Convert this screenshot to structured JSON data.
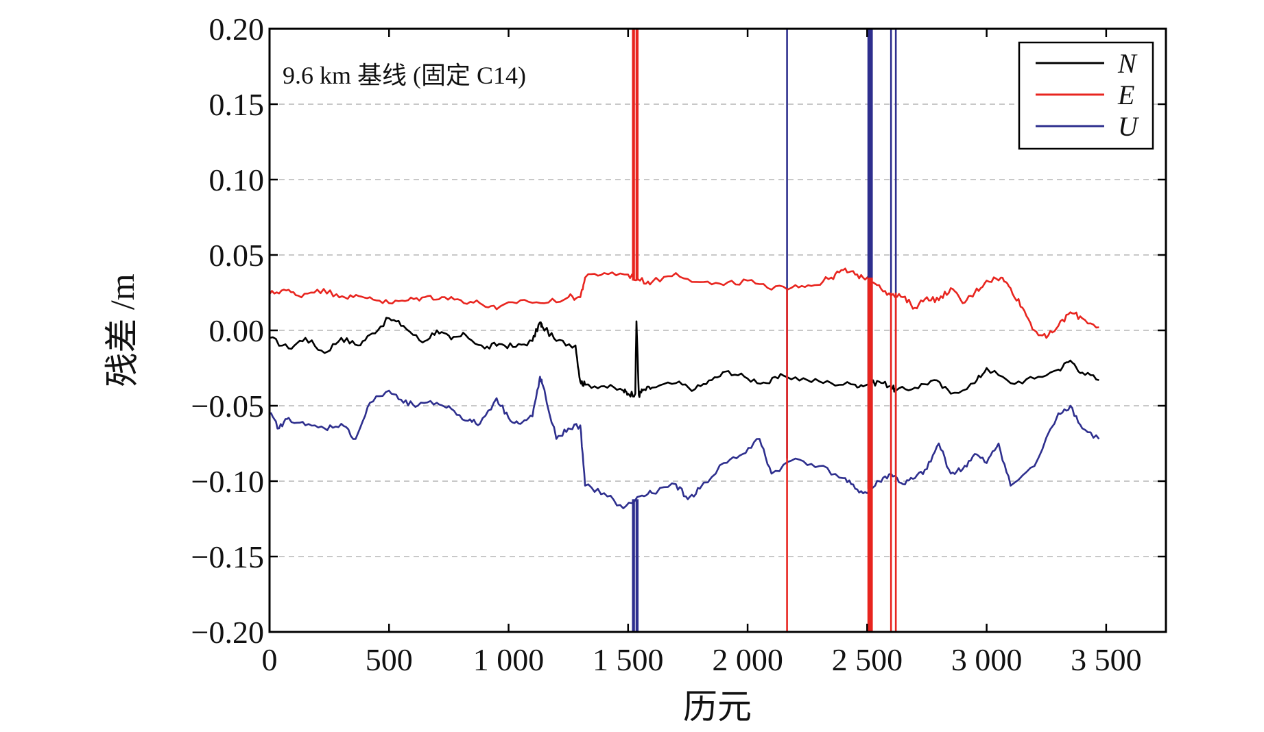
{
  "chart_data": {
    "type": "line",
    "annotation": "9.6 km 基线 (固定 C14)",
    "xlabel": "历元",
    "ylabel": "残差 /m",
    "xlim": [
      0,
      3750
    ],
    "ylim": [
      -0.2,
      0.2
    ],
    "x_ticks": [
      0,
      500,
      1000,
      1500,
      2000,
      2500,
      3000,
      3500
    ],
    "x_tick_labels": [
      "0",
      "500",
      "1 000",
      "1 500",
      "2 000",
      "2 500",
      "3 000",
      "3 500"
    ],
    "y_ticks": [
      0.2,
      0.15,
      0.1,
      0.05,
      0.0,
      -0.05,
      -0.1,
      -0.15,
      -0.2
    ],
    "y_tick_labels": [
      "0.20",
      "0.15",
      "0.10",
      "0.05",
      "0.00",
      "−0.05",
      "−0.10",
      "−0.15",
      "−0.20"
    ],
    "grid": "horizontal dashed",
    "legend_position": "top-right",
    "series": [
      {
        "name": "N",
        "color": "#000000",
        "x": [
          0,
          80,
          150,
          230,
          300,
          370,
          430,
          500,
          560,
          640,
          700,
          760,
          820,
          900,
          960,
          1030,
          1100,
          1130,
          1140,
          1200,
          1280,
          1300,
          1320,
          1400,
          1480,
          1500,
          1530,
          1535,
          1545,
          1560,
          1600,
          1700,
          1780,
          1850,
          1920,
          2000,
          2080,
          2150,
          2250,
          2350,
          2450,
          2500,
          2550,
          2600,
          2620,
          2700,
          2780,
          2850,
          2950,
          3000,
          3100,
          3200,
          3300,
          3350,
          3400,
          3470
        ],
        "y": [
          -0.005,
          -0.012,
          -0.005,
          -0.015,
          -0.005,
          -0.01,
          -0.002,
          0.008,
          0.003,
          -0.008,
          0.0,
          -0.006,
          -0.003,
          -0.012,
          -0.009,
          -0.011,
          -0.007,
          0.005,
          0.003,
          -0.007,
          -0.01,
          -0.034,
          -0.036,
          -0.037,
          -0.04,
          -0.042,
          -0.042,
          0.006,
          -0.043,
          -0.04,
          -0.038,
          -0.035,
          -0.039,
          -0.033,
          -0.027,
          -0.032,
          -0.035,
          -0.03,
          -0.033,
          -0.035,
          -0.036,
          -0.036,
          -0.034,
          -0.037,
          -0.04,
          -0.038,
          -0.033,
          -0.042,
          -0.035,
          -0.025,
          -0.035,
          -0.032,
          -0.026,
          -0.02,
          -0.028,
          -0.033
        ]
      },
      {
        "name": "E",
        "color": "#e8251f",
        "x": [
          0,
          60,
          120,
          200,
          280,
          350,
          420,
          500,
          580,
          650,
          720,
          800,
          880,
          950,
          1050,
          1150,
          1250,
          1300,
          1320,
          1400,
          1500,
          1550,
          1600,
          1700,
          1800,
          1900,
          2000,
          2100,
          2200,
          2280,
          2350,
          2400,
          2450,
          2500,
          2550,
          2600,
          2650,
          2700,
          2750,
          2800,
          2850,
          2900,
          2950,
          3000,
          3060,
          3100,
          3150,
          3200,
          3250,
          3300,
          3350,
          3400,
          3470
        ],
        "y": [
          0.024,
          0.027,
          0.023,
          0.027,
          0.024,
          0.022,
          0.022,
          0.018,
          0.02,
          0.022,
          0.022,
          0.02,
          0.018,
          0.014,
          0.02,
          0.018,
          0.022,
          0.022,
          0.035,
          0.038,
          0.037,
          0.033,
          0.032,
          0.038,
          0.032,
          0.03,
          0.033,
          0.027,
          0.03,
          0.03,
          0.035,
          0.04,
          0.037,
          0.035,
          0.03,
          0.023,
          0.022,
          0.015,
          0.022,
          0.02,
          0.028,
          0.018,
          0.025,
          0.033,
          0.035,
          0.028,
          0.015,
          0.0,
          -0.005,
          0.003,
          0.012,
          0.008,
          0.002
        ]
      },
      {
        "name": "U",
        "color": "#2e2f8e",
        "x": [
          0,
          40,
          80,
          150,
          230,
          300,
          360,
          420,
          500,
          560,
          620,
          700,
          760,
          830,
          880,
          950,
          1000,
          1050,
          1100,
          1130,
          1140,
          1200,
          1250,
          1300,
          1320,
          1400,
          1480,
          1550,
          1600,
          1700,
          1750,
          1800,
          1900,
          1980,
          2050,
          2100,
          2200,
          2300,
          2400,
          2450,
          2500,
          2550,
          2600,
          2650,
          2700,
          2750,
          2800,
          2850,
          2900,
          2950,
          3000,
          3050,
          3100,
          3200,
          3300,
          3350,
          3400,
          3470
        ],
        "y": [
          -0.055,
          -0.065,
          -0.058,
          -0.063,
          -0.065,
          -0.062,
          -0.072,
          -0.048,
          -0.04,
          -0.048,
          -0.05,
          -0.048,
          -0.052,
          -0.06,
          -0.062,
          -0.045,
          -0.058,
          -0.062,
          -0.057,
          -0.032,
          -0.035,
          -0.072,
          -0.065,
          -0.063,
          -0.103,
          -0.108,
          -0.118,
          -0.11,
          -0.108,
          -0.102,
          -0.112,
          -0.105,
          -0.088,
          -0.082,
          -0.072,
          -0.095,
          -0.085,
          -0.09,
          -0.098,
          -0.105,
          -0.108,
          -0.1,
          -0.095,
          -0.102,
          -0.098,
          -0.092,
          -0.075,
          -0.095,
          -0.092,
          -0.082,
          -0.088,
          -0.075,
          -0.103,
          -0.09,
          -0.055,
          -0.05,
          -0.065,
          -0.072
        ]
      }
    ],
    "spikes": [
      {
        "series": "E",
        "x": [
          1520,
          1525,
          1535,
          1540
        ],
        "from": 0.033,
        "to": 0.2
      },
      {
        "series": "U",
        "x": [
          1520,
          1525,
          1535,
          1540
        ],
        "from": -0.112,
        "to": -0.2
      },
      {
        "series": "U",
        "x": [
          2165
        ],
        "from": -0.085,
        "to": 0.2
      },
      {
        "series": "E",
        "x": [
          2165
        ],
        "from": 0.028,
        "to": -0.2
      },
      {
        "series": "U",
        "x": [
          2505,
          2510,
          2515,
          2520
        ],
        "from": -0.105,
        "to": 0.2
      },
      {
        "series": "E",
        "x": [
          2505,
          2510,
          2515,
          2520
        ],
        "from": 0.035,
        "to": -0.2
      },
      {
        "series": "U",
        "x": [
          2600,
          2620
        ],
        "from": -0.095,
        "to": 0.2
      },
      {
        "series": "E",
        "x": [
          2600,
          2620
        ],
        "from": 0.025,
        "to": -0.2
      }
    ]
  }
}
